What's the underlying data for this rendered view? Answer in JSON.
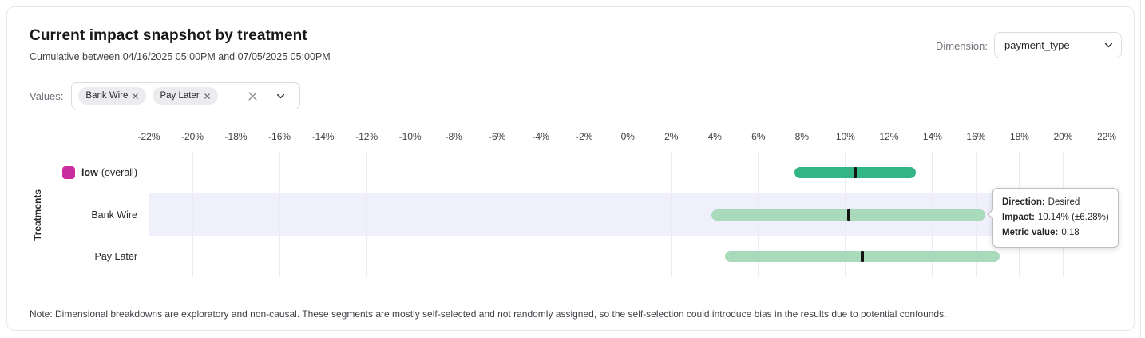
{
  "header": {
    "title": "Current impact snapshot by treatment",
    "subtitle": "Cumulative between 04/16/2025 05:00PM and 07/05/2025 05:00PM",
    "dimension_label": "Dimension:",
    "dimension_value": "payment_type"
  },
  "values_control": {
    "label": "Values:",
    "chips": [
      {
        "label": "Bank Wire"
      },
      {
        "label": "Pay Later"
      }
    ]
  },
  "note": "Note: Dimensional breakdowns are exploratory and non-causal. These segments are mostly self-selected and not randomly assigned, so the self-selection could introduce bias in the results due to potential confounds.",
  "chart_data": {
    "type": "bar",
    "subtype": "horizontal-interval",
    "ylabel": "Treatments",
    "axis": {
      "min": -22,
      "max": 22,
      "step": 2,
      "format": "percent"
    },
    "tick_labels": [
      "-22%",
      "-20%",
      "-18%",
      "-16%",
      "-14%",
      "-12%",
      "-10%",
      "-8%",
      "-6%",
      "-4%",
      "-2%",
      "0%",
      "2%",
      "4%",
      "6%",
      "8%",
      "10%",
      "12%",
      "14%",
      "16%",
      "18%",
      "20%",
      "22%"
    ],
    "grid": true,
    "rows": [
      {
        "label": "low",
        "label_note": "(overall)",
        "label_bold": true,
        "swatch_color": "#cb2e9f",
        "bar_color": "#34b586",
        "impact_pct": 10.45,
        "ci_low_pct": 7.66,
        "ci_high_pct": 13.24,
        "highlighted": false
      },
      {
        "label": "Bank Wire",
        "label_bold": false,
        "bar_color": "#a9dabb",
        "impact_pct": 10.14,
        "ci_low_pct": 3.86,
        "ci_high_pct": 16.42,
        "highlighted": true
      },
      {
        "label": "Pay Later",
        "label_bold": false,
        "bar_color": "#a9dabb",
        "impact_pct": 10.78,
        "ci_low_pct": 4.48,
        "ci_high_pct": 17.1,
        "highlighted": false
      }
    ],
    "tooltip": {
      "target_row": "Bank Wire",
      "lines": [
        {
          "label": "Direction:",
          "value": "Desired"
        },
        {
          "label": "Impact:",
          "value": "10.14% (±6.28%)"
        },
        {
          "label": "Metric value:",
          "value": "0.18"
        }
      ]
    },
    "colors": {
      "mid_tick": "#141414",
      "highlight_band": "#f0f0fc",
      "zero_line": "#77777c",
      "gridline": "#ececf0"
    }
  }
}
